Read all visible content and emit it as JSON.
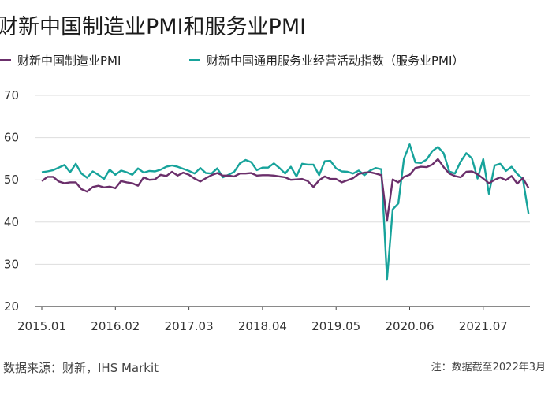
{
  "title": "财新中国制造业PMI和服务业PMI",
  "footer": {
    "source": "数据来源：财新，IHS Markit",
    "note": "注：数据截至2022年3月"
  },
  "chart_data": {
    "type": "line",
    "title": "财新中国制造业PMI和服务业PMI",
    "ylim": [
      20,
      70
    ],
    "yticks": [
      20,
      30,
      40,
      50,
      60,
      70
    ],
    "xticks": [
      "2015.01",
      "2016.02",
      "2017.03",
      "2018.04",
      "2019.05",
      "2020.06",
      "2021.07"
    ],
    "x_start": "2015.01",
    "x_end": "2022.03",
    "grid": true,
    "legend_position": "top",
    "colors": {
      "manufacturing": "#6b2f6b",
      "services": "#17a39b"
    },
    "series": [
      {
        "name": "财新中国制造业PMI",
        "key": "manufacturing",
        "values": [
          49.7,
          50.7,
          50.7,
          49.6,
          49.2,
          49.4,
          49.4,
          47.8,
          47.2,
          48.3,
          48.6,
          48.2,
          48.4,
          48.0,
          49.7,
          49.4,
          49.2,
          48.6,
          50.6,
          50.0,
          50.1,
          51.2,
          50.9,
          51.9,
          51.0,
          51.7,
          51.2,
          50.3,
          49.6,
          50.4,
          51.1,
          51.6,
          51.0,
          51.0,
          50.8,
          51.5,
          51.5,
          51.6,
          51.0,
          51.1,
          51.1,
          51.0,
          50.8,
          50.6,
          50.0,
          50.1,
          50.2,
          49.7,
          48.3,
          49.9,
          50.8,
          50.2,
          50.2,
          49.4,
          49.9,
          50.4,
          51.4,
          51.7,
          51.8,
          51.5,
          51.1,
          40.3,
          50.1,
          49.4,
          50.7,
          51.2,
          52.8,
          53.1,
          53.0,
          53.6,
          54.9,
          53.0,
          51.5,
          50.9,
          50.6,
          51.9,
          52.0,
          51.3,
          50.3,
          49.2,
          50.0,
          50.6,
          49.9,
          50.9,
          49.1,
          50.4,
          48.1
        ],
        "extra": {}
      },
      {
        "name": "财新中国通用服务业经营活动指数（服务业PMI）",
        "key": "services",
        "values": [
          51.8,
          52.0,
          52.3,
          52.9,
          53.5,
          51.8,
          53.8,
          51.5,
          50.5,
          52.0,
          51.2,
          50.2,
          52.4,
          51.2,
          52.2,
          51.8,
          51.2,
          52.7,
          51.7,
          52.1,
          52.0,
          52.4,
          53.1,
          53.4,
          53.1,
          52.6,
          52.1,
          51.5,
          52.8,
          51.6,
          51.5,
          52.7,
          50.6,
          51.2,
          51.9,
          53.9,
          54.7,
          54.2,
          52.3,
          52.9,
          52.9,
          53.9,
          52.8,
          51.5,
          53.1,
          50.8,
          53.8,
          53.6,
          53.6,
          51.1,
          54.4,
          54.5,
          52.7,
          52.0,
          51.9,
          51.5,
          52.2,
          51.1,
          52.2,
          52.8,
          52.5,
          26.5,
          43.0,
          44.4,
          55.0,
          58.4,
          54.1,
          54.0,
          54.8,
          56.8,
          57.8,
          56.3,
          52.0,
          51.5,
          54.3,
          56.3,
          55.1,
          50.3,
          54.9,
          46.7,
          53.4,
          53.8,
          52.1,
          53.1,
          51.4,
          50.2,
          42.0
        ],
        "extra": {}
      }
    ]
  }
}
